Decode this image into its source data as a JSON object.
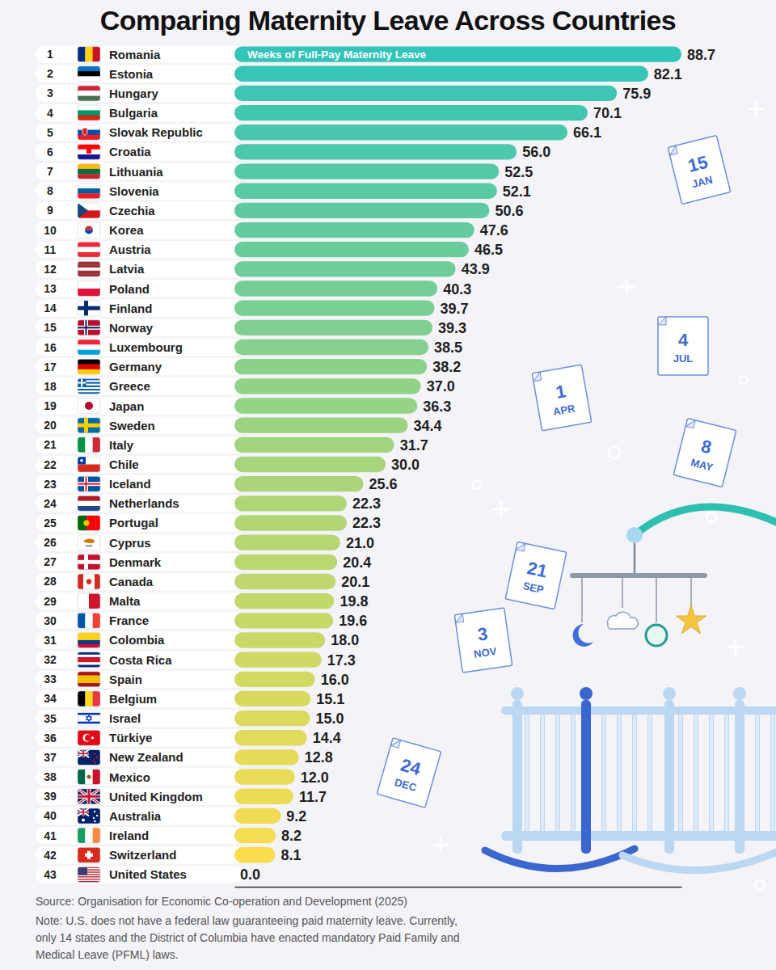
{
  "chart_data": {
    "type": "bar",
    "title": "Comparing Maternity Leave Across Countries",
    "orientation": "horizontal",
    "annotation": "Weeks of Full-Pay Maternity Leave",
    "ranks": [
      1,
      2,
      3,
      4,
      5,
      6,
      7,
      8,
      9,
      10,
      11,
      12,
      13,
      14,
      15,
      16,
      17,
      18,
      19,
      20,
      21,
      22,
      23,
      24,
      25,
      26,
      27,
      28,
      29,
      30,
      31,
      32,
      33,
      34,
      35,
      36,
      37,
      38,
      39,
      40,
      41,
      42,
      43
    ],
    "categories": [
      "Romania",
      "Estonia",
      "Hungary",
      "Bulgaria",
      "Slovak Republic",
      "Croatia",
      "Lithuania",
      "Slovenia",
      "Czechia",
      "Korea",
      "Austria",
      "Latvia",
      "Poland",
      "Finland",
      "Norway",
      "Luxembourg",
      "Germany",
      "Greece",
      "Japan",
      "Sweden",
      "Italy",
      "Chile",
      "Iceland",
      "Netherlands",
      "Portugal",
      "Cyprus",
      "Denmark",
      "Canada",
      "Malta",
      "France",
      "Colombia",
      "Costa Rica",
      "Spain",
      "Belgium",
      "Israel",
      "Türkiye",
      "New Zealand",
      "Mexico",
      "United Kingdom",
      "Australia",
      "Ireland",
      "Switzerland",
      "United States"
    ],
    "values": [
      88.7,
      82.1,
      75.9,
      70.1,
      66.1,
      56.0,
      52.5,
      52.1,
      50.6,
      47.6,
      46.5,
      43.9,
      40.3,
      39.7,
      39.3,
      38.5,
      38.2,
      37.0,
      36.3,
      34.4,
      31.7,
      30.0,
      25.6,
      22.3,
      22.3,
      21.0,
      20.4,
      20.1,
      19.8,
      19.6,
      18.0,
      17.3,
      16.0,
      15.1,
      15.0,
      14.4,
      12.8,
      12.0,
      11.7,
      9.2,
      8.2,
      8.1,
      0.0
    ],
    "value_labels": [
      "88.7",
      "82.1",
      "75.9",
      "70.1",
      "66.1",
      "56.0",
      "52.5",
      "52.1",
      "50.6",
      "47.6",
      "46.5",
      "43.9",
      "40.3",
      "39.7",
      "39.3",
      "38.5",
      "38.2",
      "37.0",
      "36.3",
      "34.4",
      "31.7",
      "30.0",
      "25.6",
      "22.3",
      "22.3",
      "21.0",
      "20.4",
      "20.1",
      "19.8",
      "19.6",
      "18.0",
      "17.3",
      "16.0",
      "15.1",
      "15.0",
      "14.4",
      "12.8",
      "12.0",
      "11.7",
      "9.2",
      "8.2",
      "8.1",
      "0.0"
    ],
    "colors": [
      "#33c4b9",
      "#38c5b6",
      "#3ec6b3",
      "#43c6b0",
      "#49c7ad",
      "#4ec8aa",
      "#54c9a7",
      "#59caa4",
      "#5fcaa1",
      "#64cb9e",
      "#6acc9b",
      "#6fcd99",
      "#75ce96",
      "#7acf93",
      "#80cf90",
      "#85d08d",
      "#8bd18a",
      "#90d287",
      "#96d384",
      "#9bd381",
      "#a1d47e",
      "#a6d57b",
      "#aad579",
      "#aed676",
      "#b3d674",
      "#b7d672",
      "#bbd770",
      "#bfd76e",
      "#c3d86b",
      "#c7d869",
      "#cbd867",
      "#cfd965",
      "#d3da62",
      "#d8da60",
      "#dcda5e",
      "#e0db5c",
      "#e4db59",
      "#e8db57",
      "#ecdc55",
      "#f0dc53",
      "#f5dd50",
      "#f9dd4e",
      "#fdde4c"
    ],
    "xlim": [
      0,
      88.7
    ],
    "xticks": [],
    "grid": false,
    "tick_labels": "y",
    "data_labels": true,
    "source": "Source: Organisation for Economic Co-operation and Development (2025)",
    "note": [
      "Note: U.S. does not have a federal law guaranteeing paid maternity leave. Currently,",
      "only 14 states and the District of Columbia have enacted mandatory Paid Family and",
      "Medical Leave (PFML) laws."
    ],
    "calendars": [
      {
        "day": "15",
        "month": "JAN"
      },
      {
        "day": "4",
        "month": "JUL"
      },
      {
        "day": "1",
        "month": "APR"
      },
      {
        "day": "8",
        "month": "MAY"
      },
      {
        "day": "21",
        "month": "SEP"
      },
      {
        "day": "3",
        "month": "NOV"
      },
      {
        "day": "24",
        "month": "DEC"
      }
    ]
  }
}
